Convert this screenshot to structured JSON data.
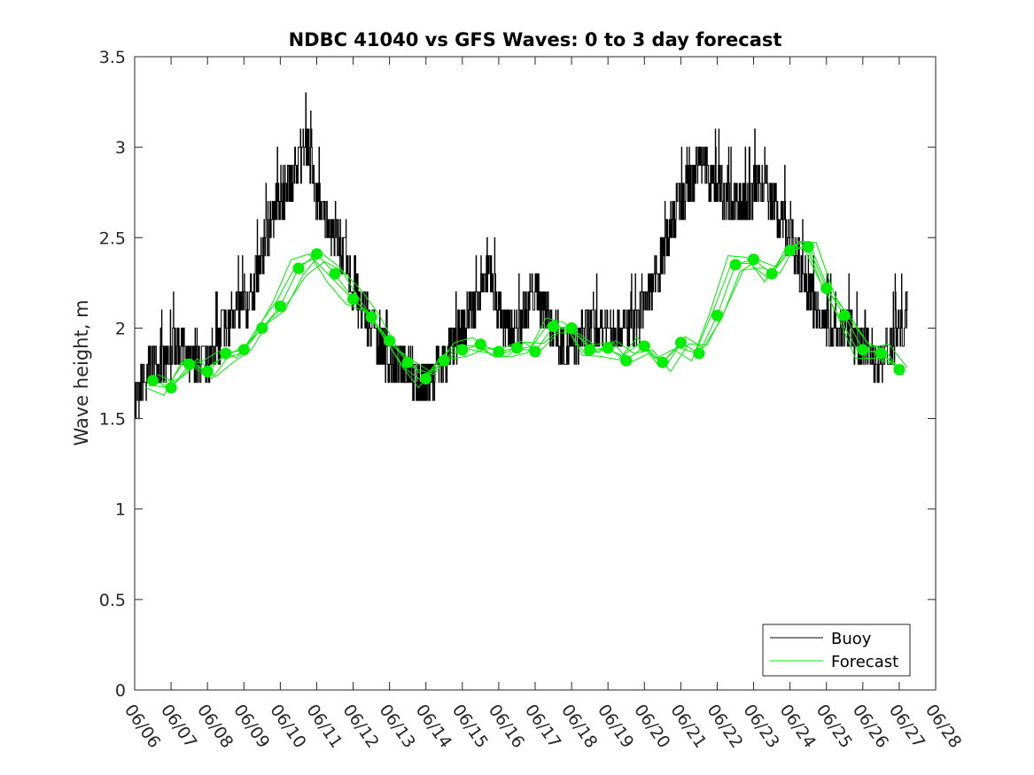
{
  "chart_data": {
    "type": "line",
    "title": "NDBC 41040 vs GFS Waves: 0 to 3 day forecast",
    "xlabel": "",
    "ylabel": "Wave height, m",
    "xlim": [
      0,
      22
    ],
    "ylim": [
      0,
      3.5
    ],
    "yticks": [
      0,
      0.5,
      1,
      1.5,
      2,
      2.5,
      3,
      3.5
    ],
    "ytick_labels": [
      "0",
      "0.5",
      "1",
      "1.5",
      "2",
      "2.5",
      "3",
      "3.5"
    ],
    "xtick_labels": [
      "06/06",
      "06/07",
      "06/08",
      "06/09",
      "06/10",
      "06/11",
      "06/12",
      "06/13",
      "06/14",
      "06/15",
      "06/16",
      "06/17",
      "06/18",
      "06/19",
      "06/20",
      "06/21",
      "06/22",
      "06/23",
      "06/24",
      "06/25",
      "06/26",
      "06/27",
      "06/28"
    ],
    "grid": false,
    "legend_position": "bottom-right",
    "series": [
      {
        "name": "Buoy",
        "color": "#000000",
        "style": "line",
        "x": [
          0,
          0.25,
          0.5,
          0.75,
          1,
          1.25,
          1.5,
          1.75,
          2,
          2.25,
          2.5,
          2.75,
          3,
          3.25,
          3.5,
          3.75,
          4,
          4.25,
          4.5,
          4.75,
          5,
          5.25,
          5.5,
          5.75,
          6,
          6.25,
          6.5,
          6.75,
          7,
          7.25,
          7.5,
          7.75,
          8,
          8.25,
          8.5,
          8.75,
          9,
          9.25,
          9.5,
          9.75,
          10,
          10.25,
          10.5,
          10.75,
          11,
          11.25,
          11.5,
          11.75,
          12,
          12.25,
          12.5,
          12.75,
          13,
          13.25,
          13.5,
          13.75,
          14,
          14.25,
          14.5,
          14.75,
          15,
          15.25,
          15.5,
          15.75,
          16,
          16.25,
          16.5,
          16.75,
          17,
          17.25,
          17.5,
          17.75,
          18,
          18.25,
          18.5,
          18.75,
          19,
          19.25,
          19.5,
          19.75,
          20,
          20.25,
          20.5,
          20.75,
          21,
          21.25
        ],
        "y": [
          1.55,
          1.7,
          1.8,
          1.8,
          1.85,
          1.9,
          1.8,
          1.75,
          1.8,
          1.9,
          2.0,
          2.1,
          2.1,
          2.2,
          2.4,
          2.6,
          2.7,
          2.8,
          2.9,
          3.0,
          2.7,
          2.6,
          2.5,
          2.4,
          2.2,
          2.1,
          2.0,
          1.9,
          1.8,
          1.75,
          1.8,
          1.7,
          1.65,
          1.75,
          1.8,
          1.9,
          2.0,
          2.1,
          2.2,
          2.3,
          2.1,
          2.0,
          2.0,
          2.1,
          2.2,
          2.1,
          2.0,
          1.9,
          1.9,
          1.95,
          2.0,
          1.95,
          2.0,
          2.05,
          2.0,
          2.0,
          2.1,
          2.2,
          2.4,
          2.6,
          2.7,
          2.8,
          2.9,
          2.85,
          2.8,
          2.7,
          2.75,
          2.7,
          2.75,
          2.8,
          2.7,
          2.6,
          2.5,
          2.35,
          2.2,
          2.1,
          2.0,
          2.05,
          2.0,
          1.95,
          1.9,
          1.85,
          1.8,
          1.9,
          2.0,
          2.1
        ]
      },
      {
        "name": "Forecast",
        "color": "#00ee00",
        "style": "lines+markers",
        "x": [
          0.5,
          1,
          1.5,
          2,
          2.5,
          3,
          3.5,
          4,
          4.5,
          5,
          5.5,
          6,
          6.5,
          7,
          7.5,
          8,
          8.5,
          9,
          9.5,
          10,
          10.5,
          11,
          11.5,
          12,
          12.5,
          13,
          13.5,
          14,
          14.5,
          15,
          15.5,
          16,
          16.5,
          17,
          17.5,
          18,
          18.5,
          19,
          19.5,
          20,
          20.5,
          21
        ],
        "y": [
          1.71,
          1.67,
          1.8,
          1.76,
          1.86,
          1.88,
          2.0,
          2.12,
          2.33,
          2.41,
          2.3,
          2.16,
          2.06,
          1.93,
          1.81,
          1.72,
          1.82,
          1.88,
          1.91,
          1.87,
          1.89,
          1.87,
          2.01,
          2.0,
          1.88,
          1.89,
          1.82,
          1.9,
          1.81,
          1.92,
          1.86,
          2.07,
          2.35,
          2.38,
          2.3,
          2.43,
          2.45,
          2.22,
          2.07,
          1.88,
          1.86,
          1.77
        ]
      }
    ]
  }
}
